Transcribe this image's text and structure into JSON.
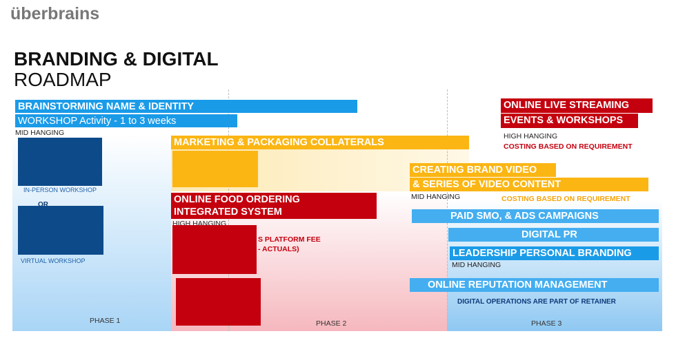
{
  "header": {
    "logo": "überbrains",
    "title": "BRANDING & DIGITAL",
    "subtitle": "ROADMAP"
  },
  "phase1": {
    "label": "PHASE 1",
    "bar": "BRAINSTORMING NAME & IDENTITY",
    "activity": "WORKSHOP Activity - 1 to 3 weeks",
    "tag": "MID HANGING",
    "option1": "IN-PERSON WORKSHOP",
    "or": "OR",
    "option2": "VIRTUAL WORKSHOP"
  },
  "phase2": {
    "label": "PHASE 2",
    "collaterals": "MARKETING & PACKAGING COLLATERALS",
    "ordering": [
      "ONLINE FOOD ORDERING",
      "INTEGRATED SYSTEM"
    ],
    "tag": "HIGH HANGING",
    "fee": [
      "S PLATFORM FEE",
      "- ACTUALS)"
    ]
  },
  "phase3": {
    "label": "PHASE 3",
    "streaming": [
      "ONLINE LIVE STREAMING",
      "EVENTS & WORKSHOPS"
    ],
    "streaming_tag": "HIGH HANGING",
    "streaming_cost": "COSTING BASED ON REQUIREMENT",
    "video": [
      "CREATING BRAND VIDEO",
      "& SERIES OF VIDEO CONTENT"
    ],
    "video_tag": "MID HANGING",
    "video_cost": "COSTING BASED ON REQUIREMENT",
    "smo": "PAID SMO, & ADS CAMPAIGNS",
    "pr": "DIGITAL PR",
    "leadership": "LEADERSHIP PERSONAL BRANDING",
    "leadership_tag": "MID HANGING",
    "orm": "ONLINE REPUTATION MANAGEMENT",
    "retainer": "DIGITAL OPERATIONS ARE PART OF RETAINER"
  }
}
